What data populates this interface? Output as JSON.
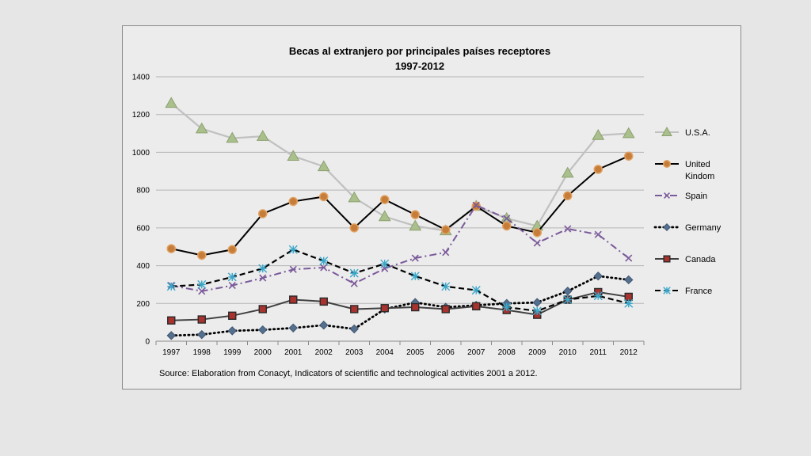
{
  "chart_data": {
    "type": "line",
    "title": "Becas al extranjero por principales países receptores",
    "subtitle": "1997-2012",
    "source": "Source: Elaboration from Conacyt, Indicators of scientific and technological activities 2001 a 2012.",
    "x": [
      "1997",
      "1998",
      "1999",
      "2000",
      "2001",
      "2002",
      "2003",
      "2004",
      "2005",
      "2006",
      "2007",
      "2008",
      "2009",
      "2010",
      "2011",
      "2012"
    ],
    "ylim": [
      0,
      1400
    ],
    "yticks": [
      "0",
      "200",
      "400",
      "600",
      "800",
      "1000",
      "1200",
      "1400"
    ],
    "grid": true,
    "legend_position": "right",
    "series": [
      {
        "name": "U.S.A.",
        "values": [
          1260,
          1125,
          1075,
          1085,
          980,
          925,
          760,
          660,
          610,
          585,
          715,
          650,
          610,
          890,
          1090,
          1100
        ],
        "color": "#c0c0c0",
        "marker": "triangle",
        "marker_color": "#a9c08c",
        "dash": "solid"
      },
      {
        "name": "United Kindom",
        "values": [
          490,
          455,
          485,
          675,
          740,
          765,
          600,
          750,
          670,
          590,
          715,
          610,
          575,
          770,
          910,
          980
        ],
        "color": "#000000",
        "marker": "circle",
        "marker_color": "#c77d3a",
        "dash": "solid"
      },
      {
        "name": "Spain",
        "values": [
          295,
          265,
          295,
          335,
          380,
          390,
          305,
          385,
          440,
          470,
          720,
          650,
          520,
          595,
          565,
          440
        ],
        "color": "#7a5a9a",
        "marker": "x",
        "marker_color": "#7a5a9a",
        "dash": "dashdot"
      },
      {
        "name": "Germany",
        "values": [
          30,
          35,
          55,
          60,
          70,
          85,
          65,
          170,
          205,
          180,
          190,
          200,
          205,
          265,
          345,
          325
        ],
        "color": "#000000",
        "marker": "diamond",
        "marker_color": "#55708f",
        "dash": "dotted"
      },
      {
        "name": "Canada",
        "values": [
          110,
          115,
          135,
          170,
          220,
          210,
          170,
          175,
          180,
          170,
          185,
          165,
          140,
          220,
          260,
          235
        ],
        "color": "#404040",
        "marker": "square",
        "marker_color": "#a8322e",
        "dash": "solid"
      },
      {
        "name": "France",
        "values": [
          290,
          300,
          340,
          385,
          485,
          425,
          360,
          410,
          345,
          290,
          270,
          180,
          160,
          220,
          240,
          200
        ],
        "color": "#000000",
        "marker": "asterisk",
        "marker_color": "#3aa6c8",
        "dash": "dashed"
      }
    ]
  }
}
